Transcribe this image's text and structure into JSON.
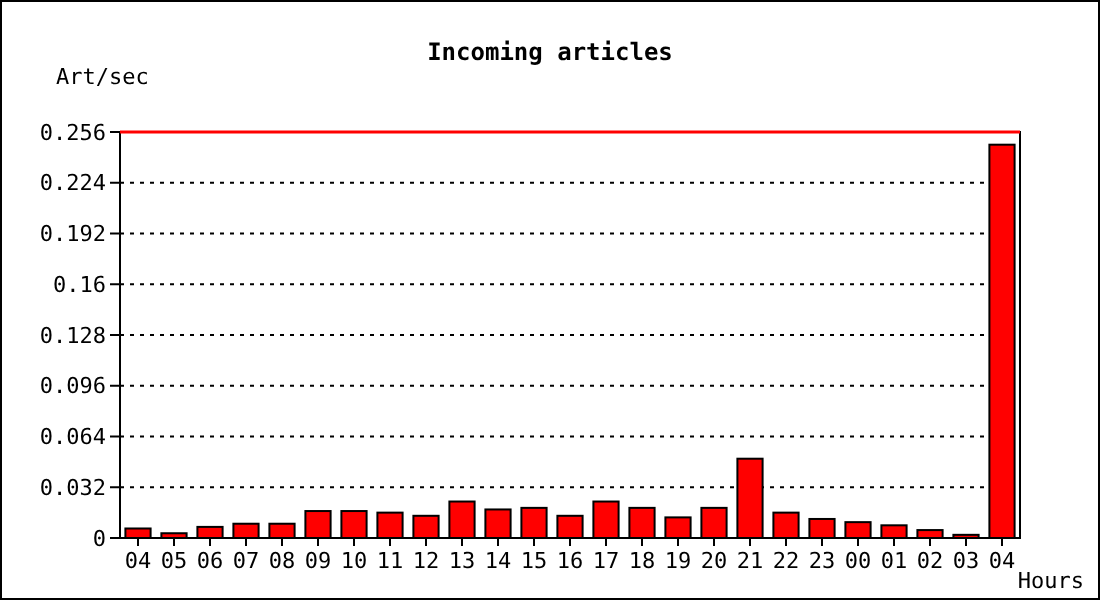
{
  "chart_data": {
    "type": "bar",
    "title": "Incoming articles",
    "ylabel": "Art/sec",
    "xlabel": "Hours",
    "categories": [
      "04",
      "05",
      "06",
      "07",
      "08",
      "09",
      "10",
      "11",
      "12",
      "13",
      "14",
      "15",
      "16",
      "17",
      "18",
      "19",
      "20",
      "21",
      "22",
      "23",
      "00",
      "01",
      "02",
      "03",
      "04"
    ],
    "values": [
      0.006,
      0.003,
      0.007,
      0.009,
      0.009,
      0.017,
      0.017,
      0.016,
      0.014,
      0.023,
      0.018,
      0.019,
      0.014,
      0.023,
      0.019,
      0.013,
      0.019,
      0.05,
      0.016,
      0.012,
      0.01,
      0.008,
      0.005,
      0.002,
      0.248
    ],
    "color": "#ff0000",
    "ylim": [
      0,
      0.256
    ],
    "yticks": [
      0,
      0.032,
      0.064,
      0.096,
      0.128,
      0.16,
      0.192,
      0.224,
      0.256
    ],
    "grid": "y",
    "ref_lines": [
      {
        "axis": "y",
        "value": 0.256,
        "color": "#ff0000"
      }
    ]
  }
}
